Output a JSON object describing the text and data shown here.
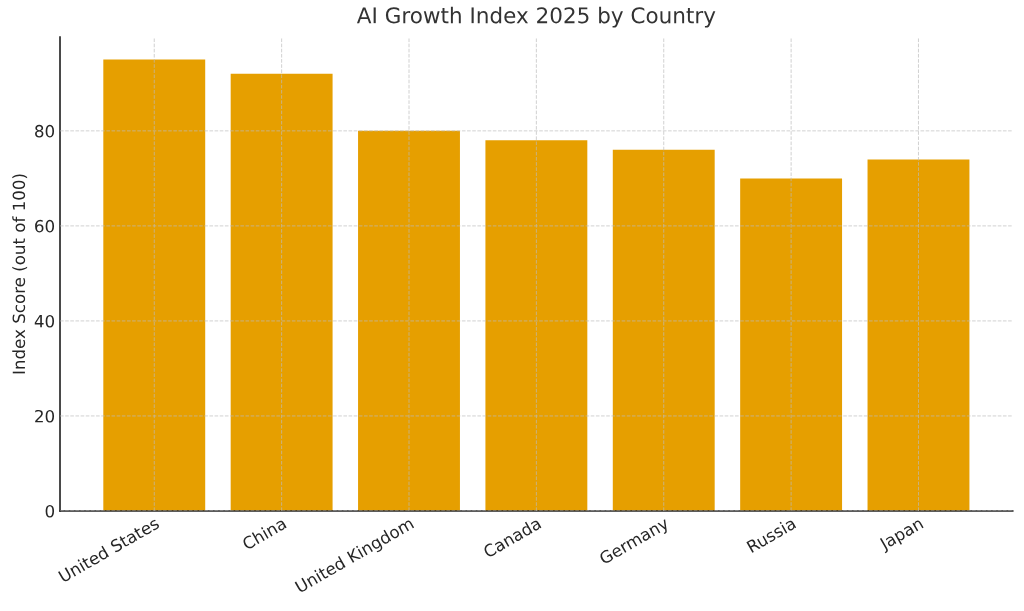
{
  "chart_data": {
    "type": "bar",
    "title": "AI Growth Index 2025 by Country",
    "ylabel": "Index Score (out of 100)",
    "categories": [
      "United States",
      "China",
      "United Kingdom",
      "Canada",
      "Germany",
      "Russia",
      "Japan"
    ],
    "values": [
      95,
      92,
      80,
      78,
      76,
      70,
      74
    ],
    "color": "#e69f00",
    "ylim": [
      0,
      99.75
    ],
    "yticks": [
      0,
      20,
      40,
      60,
      80
    ],
    "grid": true
  }
}
